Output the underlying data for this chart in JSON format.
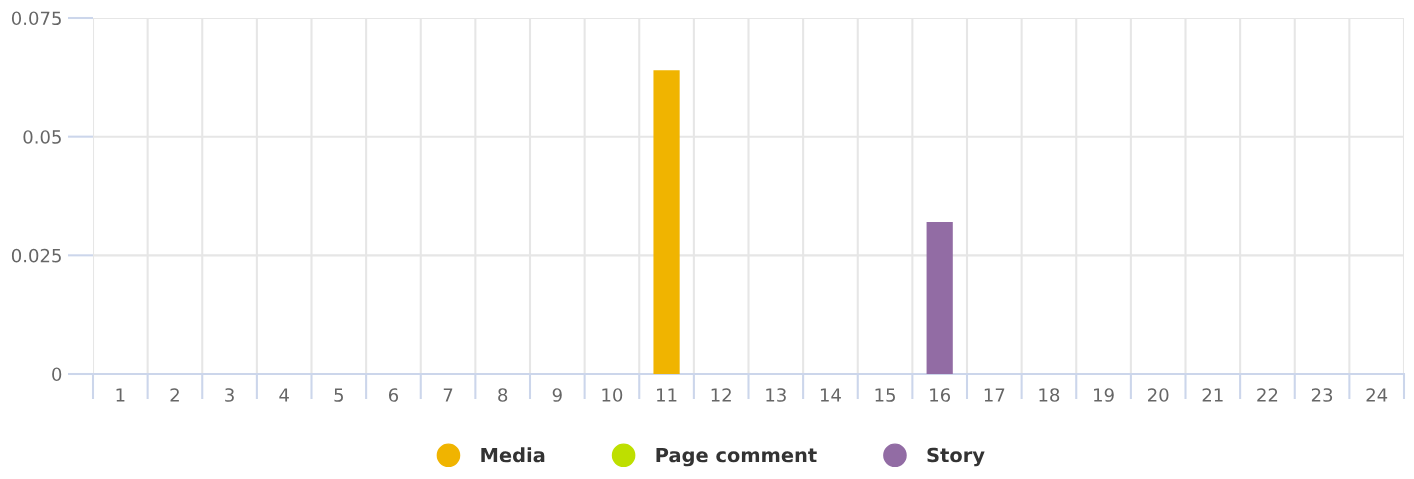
{
  "chart_data": {
    "type": "bar",
    "stacked": true,
    "categories": [
      "1",
      "2",
      "3",
      "4",
      "5",
      "6",
      "7",
      "8",
      "9",
      "10",
      "11",
      "12",
      "13",
      "14",
      "15",
      "16",
      "17",
      "18",
      "19",
      "20",
      "21",
      "22",
      "23",
      "24"
    ],
    "series": [
      {
        "name": "Media",
        "color": "#f0b400",
        "values": [
          0,
          0,
          0,
          0,
          0,
          0,
          0,
          0,
          0,
          0,
          0.064,
          0,
          0,
          0,
          0,
          0,
          0,
          0,
          0,
          0,
          0,
          0,
          0,
          0
        ]
      },
      {
        "name": "Page comment",
        "color": "#bedf00",
        "values": [
          0,
          0,
          0,
          0,
          0,
          0,
          0,
          0,
          0,
          0,
          0,
          0,
          0,
          0,
          0,
          0,
          0,
          0,
          0,
          0,
          0,
          0,
          0,
          0
        ]
      },
      {
        "name": "Story",
        "color": "#926ca4",
        "values": [
          0,
          0,
          0,
          0,
          0,
          0,
          0,
          0,
          0,
          0,
          0,
          0,
          0,
          0,
          0,
          0.032,
          0,
          0,
          0,
          0,
          0,
          0,
          0,
          0
        ]
      }
    ],
    "ylim": [
      0,
      0.075
    ],
    "yticks": [
      0,
      0.025,
      0.05,
      {
        "value": 0.075,
        "label": "0.075"
      }
    ],
    "grid": true,
    "legend": "bottom",
    "marker": "circle"
  }
}
